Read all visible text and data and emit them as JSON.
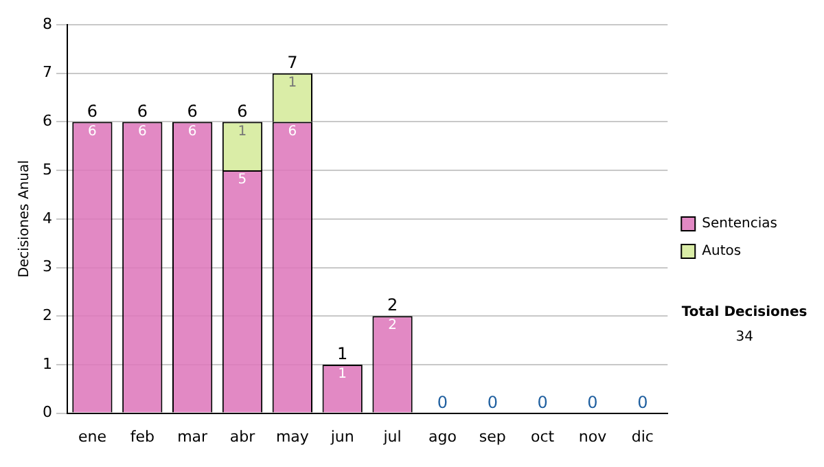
{
  "chart_data": {
    "type": "bar",
    "stacked": true,
    "ylabel": "Decisiones Anual",
    "categories": [
      "ene",
      "feb",
      "mar",
      "abr",
      "may",
      "jun",
      "jul",
      "ago",
      "sep",
      "oct",
      "nov",
      "dic"
    ],
    "series": [
      {
        "name": "Sentencias",
        "color": "#dd77bb",
        "values": [
          6,
          6,
          6,
          5,
          6,
          1,
          2,
          0,
          0,
          0,
          0,
          0
        ],
        "value_labels": [
          "6",
          "6",
          "6",
          "5",
          "6",
          "1",
          "2",
          null,
          null,
          null,
          null,
          null
        ]
      },
      {
        "name": "Autos",
        "color": "#d4ea9a",
        "values": [
          0,
          0,
          0,
          1,
          1,
          0,
          0,
          0,
          0,
          0,
          0,
          0
        ],
        "value_labels": [
          null,
          null,
          null,
          "1",
          "1",
          null,
          null,
          null,
          null,
          null,
          null,
          null
        ]
      }
    ],
    "totals": [
      "6",
      "6",
      "6",
      "6",
      "7",
      "1",
      "2",
      "0",
      "0",
      "0",
      "0",
      "0"
    ],
    "ylim": [
      0,
      8
    ],
    "yticks": [
      0,
      1,
      2,
      3,
      4,
      5,
      6,
      7,
      8
    ],
    "grid": "y",
    "legend": "right",
    "annotations": [
      "Total Decisiones",
      "34"
    ]
  }
}
